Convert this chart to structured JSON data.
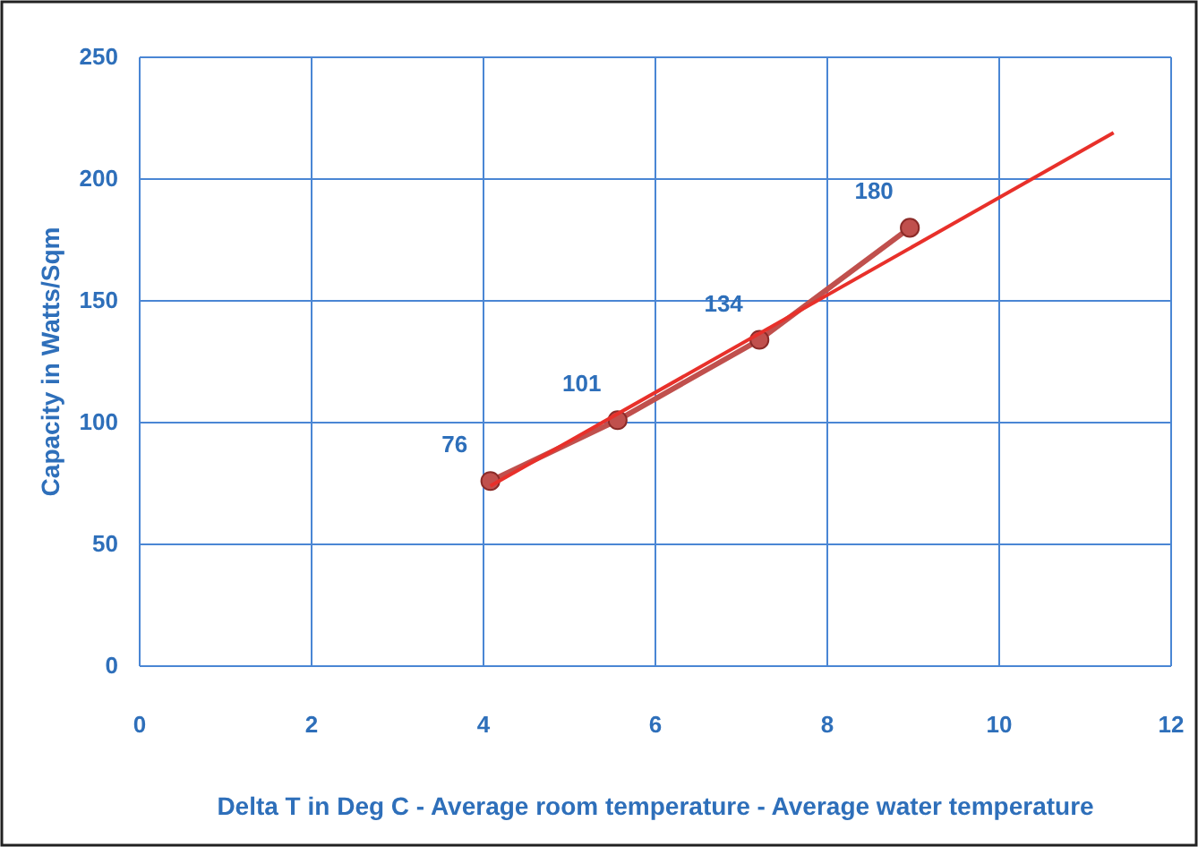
{
  "chart_data": {
    "type": "line",
    "xlabel": "Delta T in Deg C - Average room temperature - Average water temperature",
    "ylabel": "Capacity in Watts/Sqm",
    "xlim": [
      0,
      12
    ],
    "xticks": [
      0,
      2,
      4,
      6,
      8,
      10,
      12
    ],
    "ylim": [
      0,
      250
    ],
    "yticks": [
      0,
      50,
      100,
      150,
      200,
      250
    ],
    "grid": true,
    "series": [
      {
        "color": "#c0504d",
        "marker": "circle",
        "x": [
          4.08,
          5.56,
          7.21,
          8.96
        ],
        "values": [
          76,
          101,
          134,
          180
        ],
        "data_labels": true
      },
      {
        "color": "#e8302a",
        "marker": "none",
        "x": [
          4.08,
          11.33
        ],
        "values": [
          74,
          219
        ]
      }
    ]
  }
}
